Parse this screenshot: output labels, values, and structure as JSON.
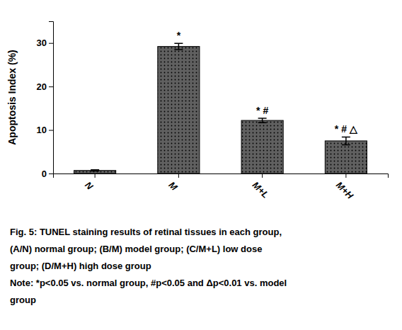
{
  "chart_data": {
    "type": "bar",
    "categories": [
      "N",
      "M",
      "M+L",
      "M+H"
    ],
    "values": [
      0.7,
      29.2,
      12.2,
      7.5
    ],
    "errors": [
      0.15,
      0.7,
      0.5,
      0.9
    ],
    "color": "#606060",
    "ylabel": "Apoptosis Index (%)",
    "ylim": [
      0,
      35
    ],
    "yticks": [
      0,
      10,
      20,
      30
    ],
    "grid": false,
    "annotations": [
      {
        "category": "M",
        "text": "*"
      },
      {
        "category": "M+L",
        "text": "* #"
      },
      {
        "category": "M+H",
        "text": "* # △"
      }
    ],
    "caption": [
      "Fig. 5: TUNEL staining results of retinal tissues in each group,",
      "(A/N) normal group; (B/M) model group; (C/M+L) low dose",
      "group; (D/M+H) high dose group",
      "Note: *p<0.05 vs. normal group, #p<0.05 and Δp<0.01 vs. model",
      "group"
    ]
  }
}
